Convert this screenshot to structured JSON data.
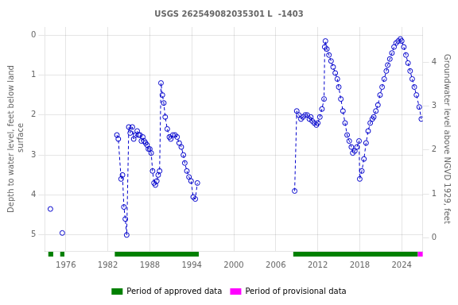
{
  "chart_data": {
    "type": "line",
    "title": "USGS 262549082035301 L  -1403",
    "y_label": "Depth to water level, feet below land\n surface",
    "y2_label": "Groundwater level above NGVD 1929, feet",
    "xlim": [
      1973,
      2027
    ],
    "xticks": [
      1976,
      1982,
      1988,
      1994,
      2000,
      2006,
      2012,
      2018,
      2024
    ],
    "ylim": [
      5.4,
      -0.2
    ],
    "yticks": [
      0.0,
      1.0,
      2.0,
      3.0,
      4.0,
      5.0
    ],
    "y2lim": [
      -0.3,
      4.8
    ],
    "y2ticks": [
      0.0,
      1.0,
      2.0,
      3.0,
      4.0
    ],
    "grid": true,
    "legend": "bottom",
    "series": [
      {
        "type": "scatter",
        "color": "#0000cc",
        "marker": "open_circle",
        "x": [
          1973.8
        ],
        "values": [
          4.35
        ]
      },
      {
        "type": "scatter",
        "color": "#0000cc",
        "marker": "open_circle",
        "x": [
          1975.5
        ],
        "values": [
          4.95
        ]
      },
      {
        "type": "line",
        "color": "#0000cc",
        "marker": "open_circle",
        "line_style": "dashed",
        "x": [
          1983.3,
          1983.5,
          1983.9,
          1984.1,
          1984.3,
          1984.5,
          1984.7,
          1985.0,
          1985.2,
          1985.5,
          1985.7,
          1986.0,
          1986.2,
          1986.4,
          1986.6,
          1986.8,
          1987.0,
          1987.2,
          1987.4,
          1987.6,
          1987.8,
          1988.0,
          1988.2,
          1988.4,
          1988.6,
          1988.8,
          1989.0,
          1989.2,
          1989.4,
          1989.6,
          1989.8,
          1990.0,
          1990.2,
          1990.5,
          1990.8,
          1991.0,
          1991.3,
          1991.6,
          1991.9,
          1992.2,
          1992.5,
          1992.8,
          1993.0,
          1993.3,
          1993.6,
          1993.9,
          1994.2,
          1994.5,
          1994.8
        ],
        "values": [
          2.5,
          2.6,
          3.6,
          3.5,
          4.3,
          4.6,
          5.0,
          2.3,
          2.45,
          2.3,
          2.6,
          2.5,
          2.4,
          2.5,
          2.5,
          2.65,
          2.55,
          2.65,
          2.7,
          2.75,
          2.85,
          2.85,
          2.95,
          3.4,
          3.7,
          3.75,
          3.65,
          3.5,
          3.4,
          1.2,
          1.5,
          1.7,
          2.05,
          2.35,
          2.55,
          2.6,
          2.5,
          2.5,
          2.55,
          2.7,
          2.8,
          3.0,
          3.2,
          3.4,
          3.55,
          3.65,
          4.05,
          4.1,
          3.7
        ]
      },
      {
        "type": "line",
        "color": "#0000cc",
        "marker": "open_circle",
        "line_style": "dashed",
        "x": [
          2008.7,
          2009.0,
          2009.3,
          2009.6,
          2009.9,
          2010.2,
          2010.5,
          2010.8,
          2011.0,
          2011.2,
          2011.5,
          2011.8,
          2012.0,
          2012.3,
          2012.6,
          2012.9,
          2013.0,
          2013.1,
          2013.3,
          2013.6,
          2013.9,
          2014.2,
          2014.5,
          2014.8,
          2015.0,
          2015.3,
          2015.6,
          2015.9,
          2016.2,
          2016.5,
          2016.8,
          2017.0,
          2017.3,
          2017.6,
          2017.9,
          2018.0,
          2018.3,
          2018.6,
          2018.9,
          2019.2,
          2019.5,
          2019.8,
          2020.0,
          2020.3,
          2020.6,
          2020.9,
          2021.2,
          2021.5,
          2021.8,
          2022.0,
          2022.3,
          2022.6,
          2022.9,
          2023.2,
          2023.5,
          2023.8,
          2024.0,
          2024.3,
          2024.6,
          2024.9,
          2025.2,
          2025.5,
          2025.8,
          2026.1,
          2026.5,
          2026.8
        ],
        "values": [
          3.9,
          1.9,
          2.0,
          2.1,
          2.05,
          2.0,
          2.0,
          2.1,
          2.05,
          2.15,
          2.2,
          2.25,
          2.2,
          2.05,
          1.85,
          1.6,
          0.3,
          0.15,
          0.35,
          0.5,
          0.65,
          0.8,
          0.95,
          1.1,
          1.3,
          1.6,
          1.9,
          2.2,
          2.5,
          2.65,
          2.8,
          2.95,
          2.9,
          2.8,
          2.65,
          3.6,
          3.4,
          3.1,
          2.7,
          2.4,
          2.2,
          2.1,
          2.05,
          1.9,
          1.75,
          1.5,
          1.3,
          1.1,
          0.9,
          0.75,
          0.6,
          0.45,
          0.3,
          0.2,
          0.15,
          0.1,
          0.15,
          0.3,
          0.5,
          0.7,
          0.9,
          1.1,
          1.3,
          1.5,
          1.8,
          2.1
        ]
      }
    ],
    "periods": [
      {
        "name": "Period of approved data",
        "color": "#008000",
        "ranges": [
          [
            1973.5,
            1974.2
          ],
          [
            1975.2,
            1975.8
          ],
          [
            1983.0,
            1995.0
          ],
          [
            2008.5,
            2026.3
          ]
        ]
      },
      {
        "name": "Period of provisional data",
        "color": "#ff00ff",
        "ranges": [
          [
            2026.3,
            2027.0
          ]
        ]
      }
    ]
  }
}
